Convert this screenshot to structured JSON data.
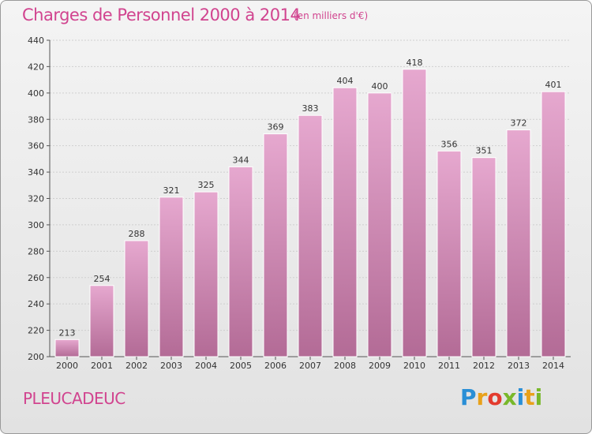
{
  "header": {
    "title": "Charges de Personnel 2000 à 2014",
    "unit": "(en milliers d'€)"
  },
  "footer": {
    "place": "PLEUCADEUC",
    "logo": "Proxiti"
  },
  "colors": {
    "accent": "#d1448f",
    "bar_top": "#e6a8cf",
    "bar_bottom": "#b36b96",
    "logo_letters": [
      "#2a8fd6",
      "#e8a11a",
      "#e33b2e",
      "#78b82a",
      "#2a8fd6",
      "#e8a11a",
      "#78b82a"
    ]
  },
  "chart_data": {
    "type": "bar",
    "categories": [
      "2000",
      "2001",
      "2002",
      "2003",
      "2004",
      "2005",
      "2006",
      "2007",
      "2008",
      "2009",
      "2010",
      "2011",
      "2012",
      "2013",
      "2014"
    ],
    "values": [
      213,
      254,
      288,
      321,
      325,
      344,
      369,
      383,
      404,
      400,
      418,
      356,
      351,
      372,
      401
    ],
    "ylim": [
      200,
      440
    ],
    "yticks": [
      200,
      220,
      240,
      260,
      280,
      300,
      320,
      340,
      360,
      380,
      400,
      420,
      440
    ],
    "grid": true
  }
}
